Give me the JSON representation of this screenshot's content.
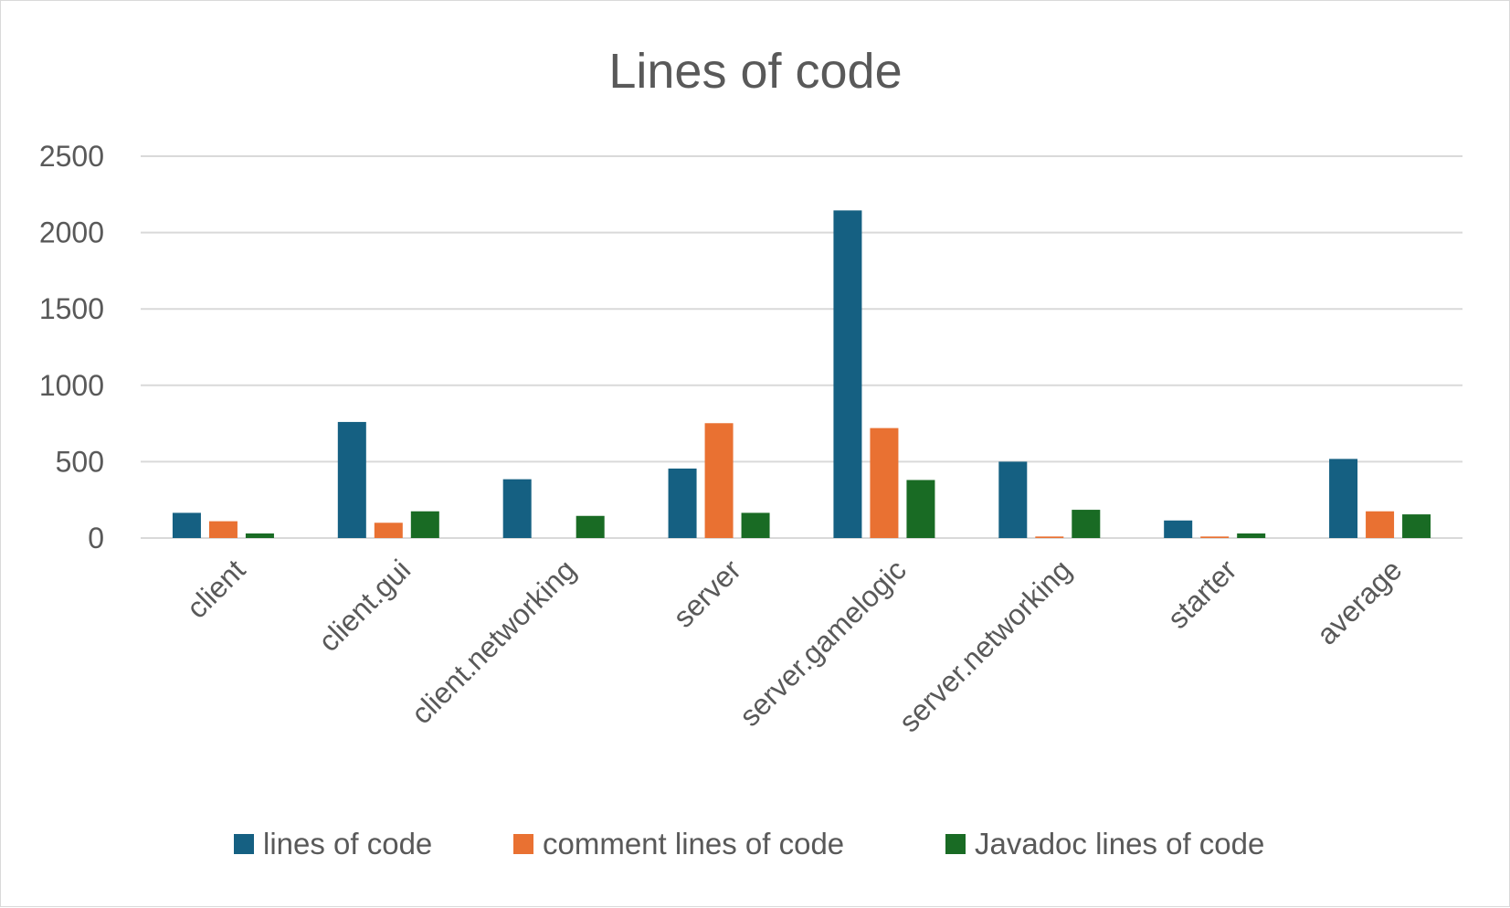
{
  "chart_data": {
    "type": "bar",
    "title": "Lines of code",
    "xlabel": "",
    "ylabel": "",
    "categories": [
      "client",
      "client.gui",
      "client.networking",
      "server",
      "server.gamelogic",
      "server.networking",
      "starter",
      "average"
    ],
    "series": [
      {
        "name": "lines of code",
        "color": "#156082",
        "values": [
          165,
          760,
          385,
          455,
          2145,
          500,
          115,
          518
        ]
      },
      {
        "name": "comment lines of code",
        "color": "#E97132",
        "values": [
          110,
          100,
          0,
          752,
          720,
          10,
          10,
          175
        ]
      },
      {
        "name": "Javadoc lines of code",
        "color": "#196B24",
        "values": [
          30,
          175,
          145,
          165,
          380,
          185,
          30,
          155
        ]
      }
    ],
    "ylim": [
      0,
      2500
    ],
    "yticks": [
      0,
      500,
      1000,
      1500,
      2000,
      2500
    ],
    "grid": true,
    "legend": "bottom"
  }
}
